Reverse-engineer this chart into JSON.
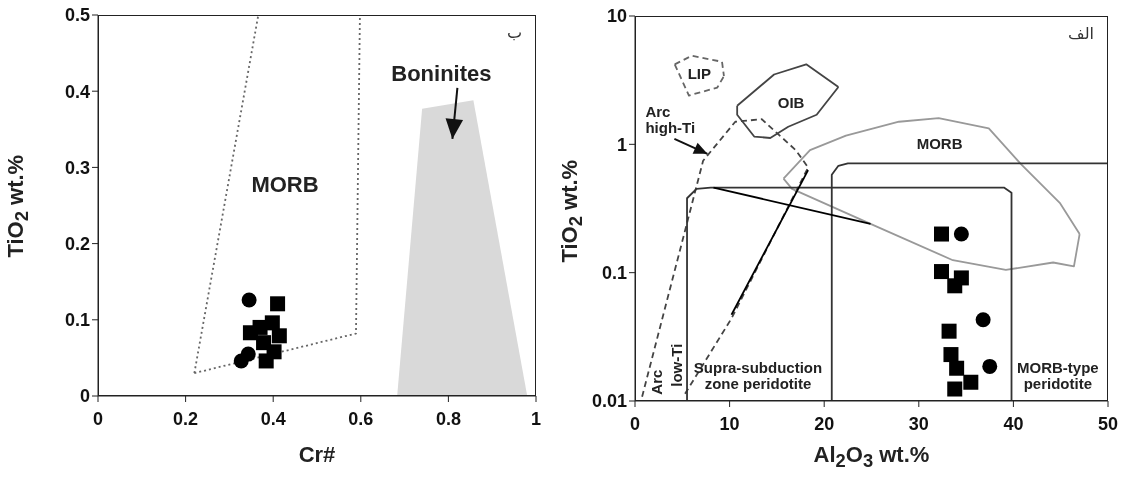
{
  "chart_data": [
    {
      "type": "scatter",
      "xlabel": "Cr#",
      "ylabel": "TiO$_{2}$ wt.%",
      "xlim": [
        0,
        1
      ],
      "xticks": [
        0,
        0.2,
        0.4,
        0.6,
        0.8,
        1
      ],
      "ylim": [
        0,
        0.5
      ],
      "yticks": [
        0,
        0.1,
        0.2,
        0.3,
        0.4,
        0.5
      ],
      "annotations": [
        "ب",
        "MORB",
        "Boninites"
      ],
      "series": [
        {
          "type": "area",
          "color": "#d9d9d9",
          "x": [
            0.683,
            0.74,
            0.857,
            0.98
          ],
          "values": [
            0,
            0.377,
            0.388,
            0
          ]
        },
        {
          "type": "line",
          "line_style": "dotted",
          "color": "#666666",
          "x": [
            0.22,
            0.366,
            0.598
          ],
          "values": [
            0.03,
            0.5,
            0.5
          ]
        },
        {
          "type": "line",
          "line_style": "dotted",
          "color": "#666666",
          "x": [
            0.22,
            0.589,
            0.598
          ],
          "values": [
            0.03,
            0.082,
            0.5
          ]
        },
        {
          "marker": "square",
          "color": "#000000",
          "x": [
            0.41,
            0.398,
            0.348,
            0.37,
            0.414,
            0.378,
            0.402,
            0.384
          ],
          "values": [
            0.121,
            0.096,
            0.083,
            0.09,
            0.079,
            0.07,
            0.058,
            0.046
          ]
        },
        {
          "marker": "circle",
          "color": "#000000",
          "x": [
            0.345,
            0.343,
            0.327
          ],
          "values": [
            0.126,
            0.055,
            0.046
          ]
        }
      ]
    },
    {
      "type": "scatter",
      "xlabel": "Al$_{2}$O$_{3}$ wt.%",
      "ylabel": "TiO$_{2}$ wt.%",
      "log": "y",
      "xlim": [
        0,
        50
      ],
      "xticks": [
        0,
        10,
        20,
        30,
        40,
        50
      ],
      "ylim": [
        0.01,
        10
      ],
      "yticks": [
        0.01,
        0.1,
        1,
        10
      ],
      "annotations": [
        "الف",
        "LIP",
        "OIB",
        "Arc\nhigh-Ti",
        "MORB",
        "Arc",
        "low-Ti",
        "Supra-subduction\nzone peridotite",
        "MORB-type\nperidotite"
      ],
      "series": [
        {
          "type": "line",
          "line_style": "dashed",
          "color": "#444444",
          "x": [
            0.75,
            7.2,
            10.6,
            13.4,
            17,
            18.3,
            10.2,
            5.1
          ],
          "values": [
            0.0108,
            0.745,
            1.5,
            1.57,
            0.9,
            0.66,
            0.044,
            0.0108
          ]
        },
        {
          "type": "line",
          "line_style": "solid",
          "color": "#444444",
          "x": [
            10.8,
            14.7,
            18.1,
            21.5
          ],
          "values": [
            2.0,
            3.5,
            4.2,
            2.8
          ]
        },
        {
          "type": "line",
          "line_style": "solid",
          "color": "#444444",
          "x": [
            10.8,
            10.8,
            12.6,
            14.3,
            16.2,
            19.2,
            21.5
          ],
          "values": [
            2.0,
            1.7,
            1.15,
            1.12,
            1.37,
            1.7,
            2.8
          ]
        },
        {
          "type": "line",
          "line_style": "dashed",
          "color": "#666666",
          "x": [
            4.2,
            6.0,
            9.2,
            9.4
          ],
          "values": [
            4.2,
            4.9,
            4.4,
            3.4
          ]
        },
        {
          "type": "line",
          "line_style": "dashed",
          "color": "#666666",
          "x": [
            4.2,
            5.7,
            8.7,
            9.4
          ],
          "values": [
            4.2,
            2.4,
            2.77,
            3.4
          ]
        },
        {
          "type": "line",
          "line_style": "solid",
          "color": "#999999",
          "x": [
            15.7,
            18.5,
            22.3,
            27.9,
            32.1,
            37.4,
            40.8,
            44.9,
            47
          ],
          "values": [
            0.54,
            0.9,
            1.17,
            1.5,
            1.6,
            1.33,
            0.7,
            0.35,
            0.2
          ]
        },
        {
          "type": "line",
          "line_style": "solid",
          "color": "#999999",
          "x": [
            15.7,
            16.6,
            24.9,
            33.6,
            39.2,
            44.2,
            46.4,
            47
          ],
          "values": [
            0.54,
            0.45,
            0.24,
            0.125,
            0.105,
            0.12,
            0.112,
            0.2
          ]
        },
        {
          "type": "line",
          "line_style": "solid",
          "color": "#333333",
          "x": [
            5.5,
            5.5,
            6.5,
            8,
            39,
            39.8,
            39.8
          ],
          "values": [
            0.01,
            0.38,
            0.45,
            0.46,
            0.46,
            0.42,
            0.01
          ]
        },
        {
          "type": "line",
          "line_style": "solid",
          "color": "#333333",
          "x": [
            20.8,
            20.8,
            21.5,
            22.5,
            50
          ],
          "values": [
            0.01,
            0.58,
            0.68,
            0.71,
            0.71
          ]
        },
        {
          "type": "line",
          "line_style": "solid",
          "color": "#000000",
          "x": [
            8.3,
            24.9
          ],
          "values": [
            0.46,
            0.24
          ]
        },
        {
          "type": "line",
          "line_style": "solid",
          "color": "#000000",
          "x": [
            18.3,
            10.2
          ],
          "values": [
            0.63,
            0.047
          ]
        },
        {
          "marker": "square",
          "color": "#000000",
          "x": [
            32.4,
            32.4,
            34.5,
            33.8,
            33.2,
            33.4,
            34.0,
            35.5,
            33.8
          ],
          "values": [
            0.2,
            0.102,
            0.091,
            0.079,
            0.035,
            0.023,
            0.018,
            0.014,
            0.0124
          ]
        },
        {
          "marker": "circle",
          "color": "#000000",
          "x": [
            34.5,
            36.8,
            37.5
          ],
          "values": [
            0.2,
            0.043,
            0.0186
          ]
        }
      ]
    }
  ]
}
